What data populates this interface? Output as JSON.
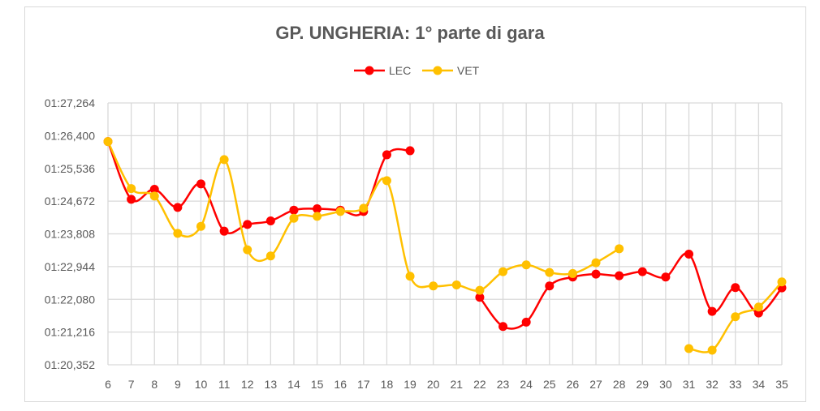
{
  "chart_data": {
    "type": "line",
    "title": "GP. UNGHERIA: 1° parte di gara",
    "xlabel": "",
    "ylabel": "",
    "x": [
      6,
      7,
      8,
      9,
      10,
      11,
      12,
      13,
      14,
      15,
      16,
      17,
      18,
      19,
      20,
      21,
      22,
      23,
      24,
      25,
      26,
      27,
      28,
      29,
      30,
      31,
      32,
      33,
      34,
      35
    ],
    "y_unit": "lap time in seconds (axis labels shown as mm:ss,ms)",
    "ylim": [
      80.352,
      87.264
    ],
    "yticks": [
      80.352,
      81.216,
      82.08,
      82.944,
      83.808,
      84.672,
      85.536,
      86.4,
      87.264
    ],
    "ytick_labels": [
      "01:20,352",
      "01:21,216",
      "01:22,080",
      "01:22,944",
      "01:23,808",
      "01:24,672",
      "01:25,536",
      "01:26,400",
      "01:27,264"
    ],
    "grid": true,
    "smoothed": true,
    "legend_position": "top",
    "series": [
      {
        "name": "LEC",
        "color": "#ff0000",
        "values": [
          86.245,
          84.72,
          84.984,
          84.506,
          85.126,
          83.879,
          84.057,
          84.15,
          84.435,
          84.471,
          84.435,
          84.4,
          85.896,
          86.003,
          null,
          null,
          82.134,
          81.364,
          81.478,
          82.433,
          82.668,
          82.746,
          82.704,
          82.81,
          82.668,
          83.274,
          81.763,
          82.39,
          81.72,
          82.383
        ]
      },
      {
        "name": "VET",
        "color": "#ffc000",
        "values": [
          86.245,
          85.005,
          84.806,
          83.822,
          84.007,
          85.768,
          83.388,
          83.224,
          84.221,
          84.271,
          84.399,
          84.485,
          85.212,
          82.689,
          82.433,
          82.461,
          82.319,
          82.81,
          82.989,
          82.789,
          82.761,
          83.046,
          83.416,
          null,
          null,
          80.78,
          80.737,
          81.62,
          81.877,
          82.54
        ]
      }
    ]
  }
}
